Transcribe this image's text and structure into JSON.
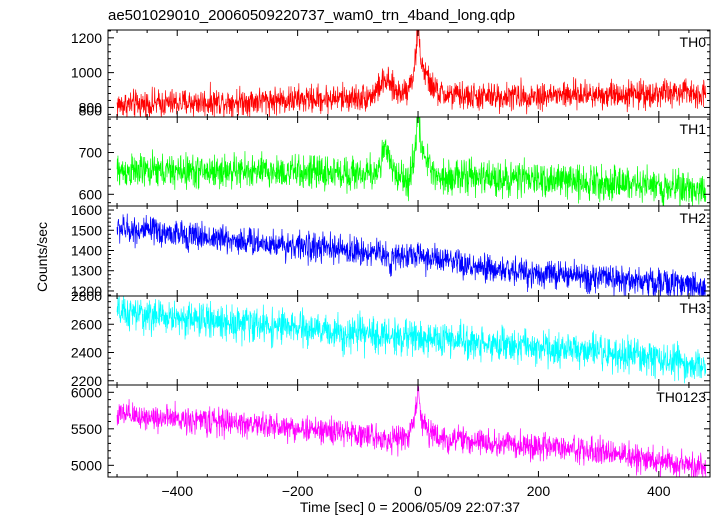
{
  "chart_data": {
    "type": "line",
    "title": "ae501029010_20060509220737_wam0_trn_4band_long.qdp",
    "xlabel": "Time [sec] 0 = 2006/05/09 22:07:37",
    "ylabel": "Counts/sec",
    "xlim": [
      -515,
      485
    ],
    "xticks": [
      -400,
      -200,
      0,
      200,
      400
    ],
    "xtick_labels": [
      "−400",
      "−200",
      "0",
      "200",
      "400"
    ],
    "grid": false,
    "panels": [
      {
        "name": "TH0",
        "color": "#ff0000",
        "ylim": [
          745,
          1245
        ],
        "yticks": [
          800,
          1000,
          1200
        ],
        "trend": {
          "x": [
            -500,
            -300,
            -100,
            -40,
            0,
            100,
            300,
            480
          ],
          "y": [
            815,
            835,
            855,
            880,
            880,
            860,
            875,
            885
          ]
        },
        "noise_amplitude": 40,
        "features": [
          {
            "type": "bump",
            "x": -55,
            "height": 75,
            "width": 10
          },
          {
            "type": "spike",
            "x": 0,
            "height": 330,
            "width": 4
          },
          {
            "type": "bump",
            "x": 5,
            "height": 110,
            "width": 14
          }
        ]
      },
      {
        "name": "TH1",
        "color": "#00ff00",
        "ylim": [
          572,
          785
        ],
        "yticks": [
          600,
          700,
          800
        ],
        "trend": {
          "x": [
            -500,
            -300,
            -100,
            0,
            100,
            300,
            480
          ],
          "y": [
            655,
            655,
            650,
            645,
            640,
            630,
            612
          ]
        },
        "noise_amplitude": 20,
        "features": [
          {
            "type": "bump",
            "x": -55,
            "height": 55,
            "width": 7
          },
          {
            "type": "spike",
            "x": -18,
            "height": -50,
            "width": 3
          },
          {
            "type": "spike",
            "x": 0,
            "height": 120,
            "width": 4
          },
          {
            "type": "bump",
            "x": 5,
            "height": 45,
            "width": 12
          }
        ]
      },
      {
        "name": "TH2",
        "color": "#0000ff",
        "ylim": [
          1175,
          1620
        ],
        "yticks": [
          1200,
          1300,
          1400,
          1500,
          1600
        ],
        "trend": {
          "x": [
            -500,
            -300,
            -100,
            0,
            100,
            300,
            480
          ],
          "y": [
            1510,
            1450,
            1395,
            1375,
            1310,
            1265,
            1220
          ]
        },
        "noise_amplitude": 35,
        "features": [
          {
            "type": "spike",
            "x": -45,
            "height": -80,
            "width": 3
          }
        ]
      },
      {
        "name": "TH3",
        "color": "#00ffff",
        "ylim": [
          2170,
          2800
        ],
        "yticks": [
          2200,
          2400,
          2600,
          2800
        ],
        "trend": {
          "x": [
            -500,
            -300,
            -100,
            0,
            100,
            300,
            480
          ],
          "y": [
            2680,
            2610,
            2530,
            2505,
            2470,
            2400,
            2310
          ]
        },
        "noise_amplitude": 60,
        "features": []
      },
      {
        "name": "TH0123",
        "color": "#ff00ff",
        "ylim": [
          4840,
          6100
        ],
        "yticks": [
          5000,
          5500,
          6000
        ],
        "trend": {
          "x": [
            -500,
            -300,
            -100,
            -40,
            0,
            100,
            300,
            480
          ],
          "y": [
            5690,
            5580,
            5430,
            5350,
            5390,
            5320,
            5190,
            4960
          ]
        },
        "noise_amplitude": 90,
        "features": [
          {
            "type": "spike",
            "x": 0,
            "height": 600,
            "width": 4
          },
          {
            "type": "bump",
            "x": 4,
            "height": 160,
            "width": 12
          }
        ]
      }
    ]
  }
}
